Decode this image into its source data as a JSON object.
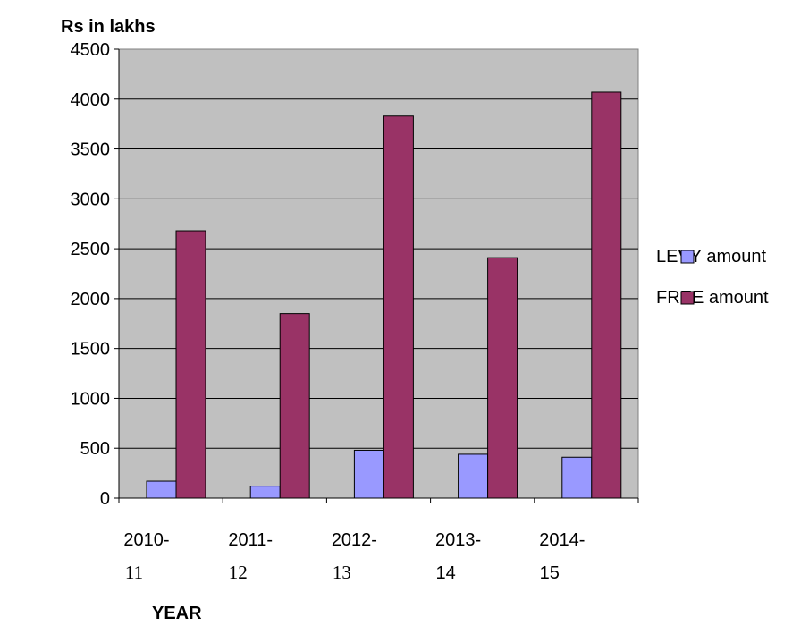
{
  "chart_data": {
    "type": "bar",
    "ylabel": "Rs in lakhs",
    "xlabel": "YEAR",
    "ylim": [
      0,
      4500
    ],
    "yticks": [
      "0",
      "500",
      "1000",
      "1500",
      "2000",
      "2500",
      "3000",
      "3500",
      "4000",
      "4500"
    ],
    "categories": [
      {
        "top": "2010-",
        "bottom": "11"
      },
      {
        "top": "2011-",
        "bottom": "12"
      },
      {
        "top": "2012-",
        "bottom": "13"
      },
      {
        "top": "2013-",
        "bottom": "14"
      },
      {
        "top": "2014-",
        "bottom": "15"
      }
    ],
    "series": [
      {
        "name": "LEVY amount",
        "values": [
          170,
          120,
          480,
          440,
          410
        ],
        "color": "#9999ff"
      },
      {
        "name": "FREE amount",
        "values": [
          2680,
          1850,
          3830,
          2410,
          4070
        ],
        "color": "#993366"
      }
    ],
    "grid": true,
    "plot_background": "#c0c0c0",
    "legend_position": "right"
  }
}
